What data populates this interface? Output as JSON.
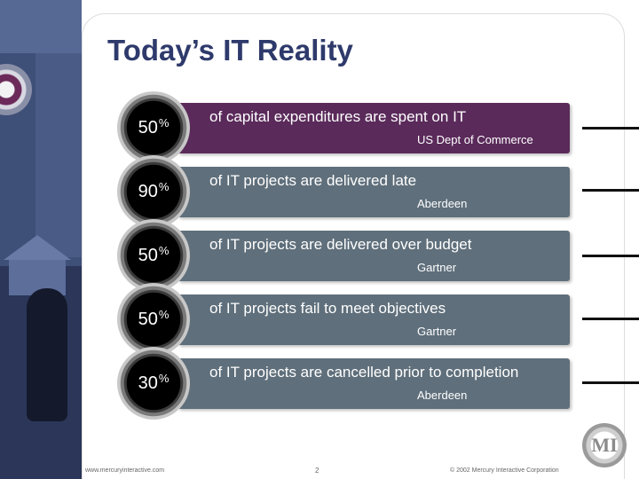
{
  "slide": {
    "title": "Today’s IT Reality",
    "stats": [
      {
        "value": "50",
        "unit": "%",
        "text": "of capital expenditures are spent on IT",
        "source": "US Dept of Commerce"
      },
      {
        "value": "90",
        "unit": "%",
        "text": "of IT projects are delivered late",
        "source": "Aberdeen"
      },
      {
        "value": "50",
        "unit": "%",
        "text": "of IT projects are delivered over budget",
        "source": "Gartner"
      },
      {
        "value": "50",
        "unit": "%",
        "text": "of IT projects fail to meet objectives",
        "source": "Gartner"
      },
      {
        "value": "30",
        "unit": "%",
        "text": "of IT projects are cancelled prior to completion",
        "source": "Aberdeen"
      }
    ],
    "footer": {
      "url": "www.mercuryinteractive.com",
      "page": "2",
      "copyright": "© 2002 Mercury Interactive Corporation"
    },
    "logo_text": "MI",
    "colors": {
      "title": "#2e3a6b",
      "first_bar": "#5a2a5a",
      "other_bars": "#5f6f7b"
    }
  }
}
